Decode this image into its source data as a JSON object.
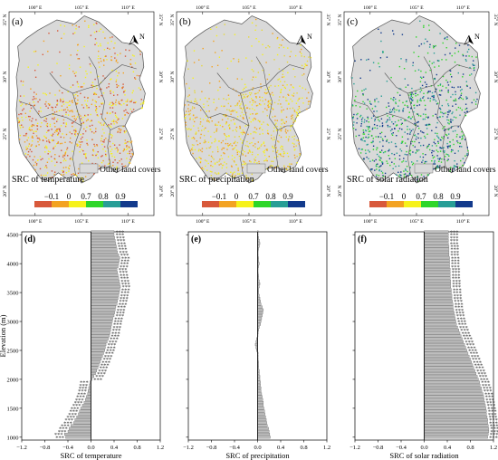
{
  "maps": [
    {
      "letter": "(a)",
      "variable_title": "SRC of temperature",
      "other_label": "Other land covers",
      "colors": [
        "#d8593b",
        "#f3a322",
        "#f6f21c",
        "#2ed629",
        "#279e96",
        "#123a8c"
      ],
      "scale_labels": [
        "−0.1",
        "0",
        "0.7",
        "0.8",
        "0.9"
      ],
      "top_ticks": [
        "100° E",
        "105° E",
        "110° E"
      ],
      "bottom_ticks": [
        "100° E",
        "105° E",
        "110° E"
      ],
      "lat_ticks": [
        "35° N",
        "30° N",
        "25° N",
        "20° N"
      ],
      "north": "N",
      "palette_used": [
        "#d8593b",
        "#f3a322",
        "#f6f21c"
      ]
    },
    {
      "letter": "(b)",
      "variable_title": "SRC of precipitation",
      "other_label": "Other land covers",
      "colors": [
        "#d8593b",
        "#f3a322",
        "#f6f21c",
        "#2ed629",
        "#279e96",
        "#123a8c"
      ],
      "scale_labels": [
        "−0.1",
        "0",
        "0.7",
        "0.8",
        "0.9"
      ],
      "top_ticks": [
        "100° E",
        "105° E",
        "110° E"
      ],
      "bottom_ticks": [
        "100° E",
        "105° E",
        "110° E"
      ],
      "lat_ticks": [
        "35° N",
        "30° N",
        "25° N",
        "20° N"
      ],
      "north": "N",
      "palette_used": [
        "#f6f21c",
        "#f3a322",
        "#e6d83a"
      ]
    },
    {
      "letter": "(c)",
      "variable_title": "SRC of solar radiation",
      "other_label": "Other land covers",
      "colors": [
        "#d8593b",
        "#f3a322",
        "#f6f21c",
        "#2ed629",
        "#279e96",
        "#123a8c"
      ],
      "scale_labels": [
        "−0.1",
        "0",
        "0.7",
        "0.8",
        "0.9"
      ],
      "top_ticks": [
        "100° E",
        "105° E",
        "110° E"
      ],
      "bottom_ticks": [
        "100° E",
        "105° E",
        "110° E"
      ],
      "lat_ticks": [
        "35° N",
        "30° N",
        "25° N",
        "20° N"
      ],
      "north": "N",
      "palette_used": [
        "#123a8c",
        "#279e96",
        "#2ed629"
      ]
    }
  ],
  "chart_data": [
    {
      "type": "bar",
      "letter": "(d)",
      "xlabel": "SRC of temperature",
      "ylabel": "Elevation (m)",
      "xlim": [
        -1.2,
        1.2
      ],
      "xticks": [
        "−1.2",
        "−0.8",
        "−0.4",
        "0.0",
        "0.4",
        "0.8",
        "1.2"
      ],
      "yticks": [
        "4500",
        "4000",
        "3500",
        "3000",
        "2500",
        "2000",
        "1500",
        "1000"
      ],
      "ylim": [
        950,
        4550
      ],
      "elevation_start": 1000,
      "elevation_step": 50,
      "values": [
        -0.44,
        -0.46,
        -0.4,
        -0.38,
        -0.35,
        -0.3,
        -0.28,
        -0.25,
        -0.22,
        -0.2,
        -0.18,
        -0.15,
        -0.12,
        -0.1,
        -0.08,
        -0.06,
        -0.05,
        -0.04,
        -0.03,
        -0.02,
        0.02,
        0.05,
        0.08,
        0.1,
        0.12,
        0.14,
        0.16,
        0.18,
        0.2,
        0.22,
        0.24,
        0.25,
        0.26,
        0.28,
        0.3,
        0.32,
        0.33,
        0.34,
        0.35,
        0.36,
        0.37,
        0.38,
        0.4,
        0.41,
        0.42,
        0.43,
        0.45,
        0.46,
        0.47,
        0.48,
        0.49,
        0.5,
        0.51,
        0.5,
        0.49,
        0.48,
        0.47,
        0.46,
        0.45,
        0.47,
        0.48,
        0.49,
        0.5,
        0.48,
        0.46,
        0.45,
        0.44,
        0.43,
        0.42,
        0.41,
        0.4,
        0.4
      ],
      "marker": "***"
    },
    {
      "type": "bar",
      "letter": "(e)",
      "xlabel": "SRC of precipitation",
      "xlim": [
        -1.2,
        1.2
      ],
      "xticks": [
        "−1.2",
        "−0.8",
        "−0.4",
        "0.0",
        "0.4",
        "0.8",
        "1.2"
      ],
      "ylim": [
        950,
        4550
      ],
      "elevation_start": 1000,
      "elevation_step": 50,
      "values": [
        0.22,
        0.21,
        0.2,
        0.19,
        0.17,
        0.16,
        0.15,
        0.14,
        0.13,
        0.12,
        0.11,
        0.1,
        0.1,
        0.09,
        0.08,
        0.07,
        0.06,
        0.06,
        0.05,
        0.05,
        0.04,
        0.04,
        0.03,
        0.03,
        0.02,
        0.02,
        0.02,
        0.01,
        0.01,
        0.01,
        -0.02,
        -0.03,
        -0.04,
        -0.03,
        -0.02,
        0.0,
        0.01,
        0.02,
        0.03,
        0.05,
        0.06,
        0.07,
        0.08,
        0.09,
        0.1,
        0.08,
        0.06,
        0.05,
        0.04,
        0.03,
        0.02,
        0.02,
        0.03,
        0.04,
        0.03,
        0.02,
        0.02,
        0.01,
        0.01,
        0.02,
        0.03,
        0.02,
        0.02,
        0.01,
        0.01,
        0.02,
        0.03,
        0.04,
        0.03,
        0.02,
        0.01,
        0.01
      ],
      "marker": ""
    },
    {
      "type": "bar",
      "letter": "(f)",
      "xlabel": "SRC of solar radiation",
      "xlim": [
        -1.2,
        1.2
      ],
      "xticks": [
        "−1.2",
        "−0.8",
        "−0.4",
        "0.0",
        "0.4",
        "0.8",
        "1.2"
      ],
      "ylim": [
        950,
        4550
      ],
      "elevation_start": 1000,
      "elevation_step": 50,
      "values": [
        1.1,
        1.11,
        1.12,
        1.12,
        1.11,
        1.1,
        1.1,
        1.09,
        1.08,
        1.08,
        1.07,
        1.06,
        1.05,
        1.04,
        1.03,
        1.02,
        1.0,
        0.99,
        0.97,
        0.96,
        0.94,
        0.92,
        0.9,
        0.88,
        0.86,
        0.84,
        0.82,
        0.8,
        0.78,
        0.76,
        0.74,
        0.72,
        0.7,
        0.68,
        0.66,
        0.64,
        0.62,
        0.6,
        0.58,
        0.56,
        0.55,
        0.54,
        0.53,
        0.52,
        0.51,
        0.5,
        0.5,
        0.49,
        0.48,
        0.48,
        0.47,
        0.47,
        0.46,
        0.46,
        0.46,
        0.45,
        0.45,
        0.45,
        0.45,
        0.44,
        0.44,
        0.44,
        0.44,
        0.43,
        0.43,
        0.43,
        0.43,
        0.42,
        0.42,
        0.42,
        0.42,
        0.42
      ],
      "marker": "***"
    }
  ]
}
